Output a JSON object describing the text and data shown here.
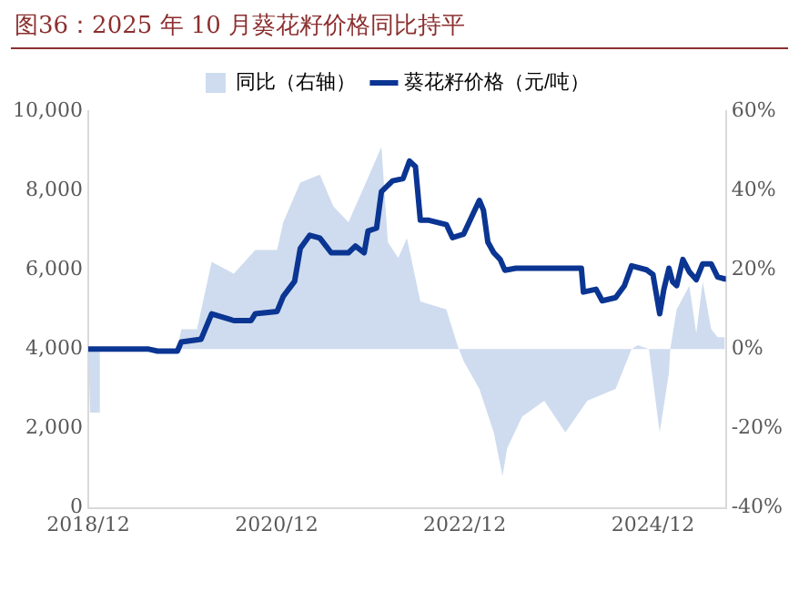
{
  "chart_data": {
    "type": "line",
    "title": "图36：2025 年 10 月葵花籽价格同比持平",
    "legend": "top",
    "xlim": [
      "2018-12-01",
      "2025-09-10"
    ],
    "xticks": [
      {
        "value": "2018-12-01",
        "label": "2018/12"
      },
      {
        "value": "2020-12-01",
        "label": "2020/12"
      },
      {
        "value": "2022-12-01",
        "label": "2022/12"
      },
      {
        "value": "2024-12-01",
        "label": "2024/12"
      }
    ],
    "ylim": [
      0,
      10000
    ],
    "yticks": [
      0,
      {
        "value": 2000,
        "label": "2,000"
      },
      {
        "value": 4000,
        "label": "4,000"
      },
      {
        "value": 6000,
        "label": "6,000"
      },
      {
        "value": 8000,
        "label": "8,000"
      },
      {
        "value": 10000,
        "label": "10,000"
      }
    ],
    "y2lim": [
      -40,
      60
    ],
    "y2ticks": [
      {
        "value": -40,
        "label": "-40%"
      },
      {
        "value": -20,
        "label": "-20%"
      },
      {
        "value": 0,
        "label": "0%"
      },
      {
        "value": 20,
        "label": "20%"
      },
      {
        "value": 40,
        "label": "40%"
      },
      {
        "value": 60,
        "label": "60%"
      }
    ],
    "series": [
      {
        "name": "同比（右轴）",
        "type": "area",
        "axis": "y2",
        "color": "#cfdcef",
        "x": [
          "2018-12-01",
          "2018-12-08",
          "2019-01-12",
          "2019-01-15",
          "2019-11-12",
          "2019-11-27",
          "2020-01-27",
          "2020-03-24",
          "2020-06-18",
          "2020-09-09",
          "2020-12-03",
          "2020-12-27",
          "2021-03-03",
          "2021-05-18",
          "2021-07-09",
          "2021-09-06",
          "2021-11-06",
          "2022-01-12",
          "2022-02-06",
          "2022-03-18",
          "2022-04-21",
          "2022-06-12",
          "2022-09-21",
          "2022-11-03",
          "2022-11-27",
          "2023-01-27",
          "2023-03-24",
          "2023-04-27",
          "2023-05-15",
          "2023-07-12",
          "2023-10-06",
          "2023-12-27",
          "2024-03-21",
          "2024-07-09",
          "2024-09-09",
          "2024-10-03",
          "2024-11-15",
          "2024-12-27",
          "2025-02-01",
          "2025-02-06",
          "2025-03-03",
          "2025-04-21",
          "2025-05-18",
          "2025-06-12",
          "2025-07-15",
          "2025-08-09",
          "2025-09-06"
        ],
        "values": [
          0,
          -16,
          -16,
          0,
          0,
          5,
          5,
          22,
          19,
          25,
          25,
          32,
          42,
          44,
          36,
          32,
          41,
          51,
          27,
          23,
          28,
          12,
          10,
          1,
          -3,
          -10,
          -21,
          -32,
          -25,
          -17,
          -13,
          -21,
          -13,
          -10,
          0,
          1,
          0,
          -21,
          -6,
          0,
          10,
          16,
          4,
          17,
          5,
          3,
          3
        ]
      },
      {
        "name": "葵花籽价格（元/吨）",
        "type": "line",
        "color": "#0b3592",
        "x": [
          "2018-12-01",
          "2019-07-24",
          "2019-08-27",
          "2019-11-12",
          "2019-11-27",
          "2020-02-12",
          "2020-03-24",
          "2020-06-18",
          "2020-08-24",
          "2020-09-09",
          "2020-12-03",
          "2020-12-27",
          "2021-02-09",
          "2021-03-03",
          "2021-04-09",
          "2021-05-18",
          "2021-07-01",
          "2021-09-06",
          "2021-10-03",
          "2021-11-06",
          "2021-11-21",
          "2021-12-24",
          "2022-01-12",
          "2022-02-24",
          "2022-04-06",
          "2022-05-01",
          "2022-05-24",
          "2022-06-12",
          "2022-07-15",
          "2022-09-21",
          "2022-10-15",
          "2022-11-27",
          "2023-01-27",
          "2023-02-12",
          "2023-03-01",
          "2023-03-24",
          "2023-04-18",
          "2023-05-06",
          "2023-06-18",
          "2024-02-27",
          "2024-03-06",
          "2024-04-24",
          "2024-05-18",
          "2024-07-09",
          "2024-08-12",
          "2024-09-09",
          "2024-11-06",
          "2024-12-01",
          "2024-12-27",
          "2025-01-12",
          "2025-02-01",
          "2025-02-15",
          "2025-03-03",
          "2025-03-27",
          "2025-04-21",
          "2025-05-18",
          "2025-06-12",
          "2025-07-15",
          "2025-08-09",
          "2025-09-06"
        ],
        "values": [
          4000,
          4000,
          3950,
          3950,
          4180,
          4250,
          4890,
          4720,
          4720,
          4890,
          4950,
          5330,
          5710,
          6540,
          6870,
          6800,
          6430,
          6430,
          6600,
          6430,
          6980,
          7050,
          7970,
          8240,
          8300,
          8740,
          8600,
          7250,
          7250,
          7140,
          6810,
          6900,
          7750,
          7500,
          6700,
          6430,
          6260,
          5990,
          6040,
          6040,
          5440,
          5510,
          5220,
          5300,
          5600,
          6100,
          6000,
          5880,
          4890,
          5500,
          6040,
          5700,
          5600,
          6260,
          5950,
          5750,
          6150,
          6150,
          5820,
          5770
        ]
      }
    ]
  }
}
